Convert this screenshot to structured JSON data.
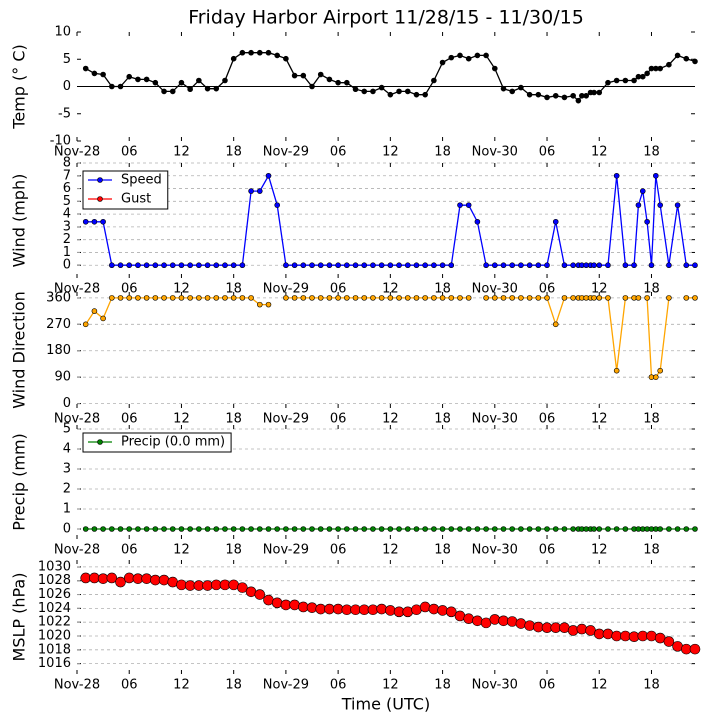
{
  "chart_data": [
    {
      "type": "line",
      "title": "Friday Harbor Airport 11/28/15 - 11/30/15",
      "ylabel": "Temp (° C)",
      "x": [
        1,
        2,
        3,
        4,
        5,
        6,
        7,
        8,
        9,
        10,
        11,
        12,
        13,
        14,
        15,
        16,
        17,
        18,
        19,
        20,
        21,
        22,
        23,
        24,
        25,
        26,
        27,
        28,
        29,
        30,
        31,
        32,
        33,
        34,
        35,
        36,
        37,
        38,
        39,
        40,
        41,
        42,
        43,
        44,
        45,
        46,
        47,
        48,
        49,
        50,
        51,
        52,
        53,
        54,
        55,
        56,
        57,
        57.6,
        58,
        58.5,
        59,
        59.4,
        60,
        61,
        62,
        63,
        64,
        64.5,
        65,
        65.5,
        66,
        66.5,
        67,
        68,
        69,
        70,
        71
      ],
      "series": [
        {
          "name": "Temp",
          "color": "#000000",
          "values": [
            3.3,
            2.4,
            2.2,
            0,
            0,
            1.8,
            1.3,
            1.3,
            0.7,
            -0.9,
            -0.9,
            0.7,
            -0.5,
            1.1,
            -0.4,
            -0.4,
            1.1,
            5.1,
            6.2,
            6.2,
            6.2,
            6.2,
            5.7,
            5.1,
            2.0,
            2.0,
            0,
            2.2,
            1.3,
            0.7,
            0.7,
            -0.5,
            -0.9,
            -0.9,
            -0.2,
            -1.5,
            -0.9,
            -0.9,
            -1.5,
            -1.5,
            1.1,
            4.4,
            5.3,
            5.7,
            5.1,
            5.7,
            5.7,
            3.3,
            -0.4,
            -0.9,
            -0.2,
            -1.5,
            -1.5,
            -2.0,
            -1.7,
            -2.0,
            -1.7,
            -2.6,
            -1.7,
            -1.7,
            -1.1,
            -1.1,
            -1.1,
            0.7,
            1.1,
            1.1,
            1.1,
            1.8,
            1.8,
            2.4,
            3.3,
            3.3,
            3.3,
            4.0,
            5.7,
            5.1,
            4.6
          ]
        }
      ],
      "xlim": [
        0,
        71
      ],
      "xticks": [
        {
          "value": 0,
          "label": "Nov-28"
        },
        {
          "value": 6,
          "label": "06"
        },
        12,
        18,
        {
          "value": 24,
          "label": "Nov-29"
        },
        {
          "value": 30,
          "label": "06"
        },
        {
          "value": 36,
          "label": "12"
        },
        {
          "value": 42,
          "label": "18"
        },
        {
          "value": 48,
          "label": "Nov-30"
        },
        {
          "value": 54,
          "label": "06"
        },
        {
          "value": 60,
          "label": "12"
        },
        {
          "value": 66,
          "label": "18"
        }
      ],
      "ylim": [
        -10,
        10
      ],
      "yticks": [
        -10,
        -5,
        0,
        5,
        10
      ],
      "hline": 0,
      "grid": false,
      "marker_size": 2.5
    },
    {
      "type": "line",
      "ylabel": "Wind (mph)",
      "x": [
        1,
        2,
        3,
        4,
        5,
        6,
        7,
        8,
        9,
        10,
        11,
        12,
        13,
        14,
        15,
        16,
        17,
        18,
        19,
        20,
        21,
        22,
        23,
        24,
        25,
        26,
        27,
        28,
        29,
        30,
        31,
        32,
        33,
        34,
        35,
        36,
        37,
        38,
        39,
        40,
        41,
        42,
        43,
        44,
        45,
        46,
        47,
        48,
        49,
        50,
        51,
        52,
        53,
        54,
        55,
        56,
        57,
        57.6,
        58,
        58.5,
        59,
        59.4,
        60,
        61,
        62,
        63,
        64,
        64.5,
        65,
        65.5,
        66,
        66.5,
        67,
        68,
        69,
        70,
        71
      ],
      "series": [
        {
          "name": "Speed",
          "color": "#0000ff",
          "values": [
            3.4,
            3.4,
            3.4,
            0,
            0,
            0,
            0,
            0,
            0,
            0,
            0,
            0,
            0,
            0,
            0,
            0,
            0,
            0,
            0,
            5.8,
            5.8,
            7,
            4.7,
            0,
            0,
            0,
            0,
            0,
            0,
            0,
            0,
            0,
            0,
            0,
            0,
            0,
            0,
            0,
            0,
            0,
            0,
            0,
            0,
            4.7,
            4.7,
            3.4,
            0,
            0,
            0,
            0,
            0,
            0,
            0,
            0,
            3.4,
            0,
            0,
            0,
            0,
            0,
            0,
            0,
            0,
            0,
            7,
            0,
            0,
            4.7,
            5.8,
            3.4,
            0,
            7,
            4.7,
            0,
            4.7,
            0,
            0
          ]
        },
        {
          "name": "Gust",
          "color": "#ff0000",
          "values": [
            null,
            null,
            null,
            null,
            null,
            null,
            null,
            null,
            null,
            null,
            null,
            null,
            null,
            null,
            null,
            null,
            null,
            null,
            null,
            null,
            null,
            null,
            null,
            null,
            null,
            null,
            null,
            null,
            null,
            null,
            null,
            null,
            null,
            null,
            null,
            null,
            null,
            null,
            null,
            null,
            null,
            null,
            null,
            null,
            null,
            null,
            null,
            null,
            null,
            null,
            null,
            null,
            null,
            null,
            null,
            null,
            null,
            null,
            null,
            null,
            null,
            null,
            null,
            null,
            null,
            null,
            null,
            null,
            null,
            null,
            null,
            null,
            null,
            null,
            null,
            null,
            null
          ]
        }
      ],
      "xlim": [
        0,
        71
      ],
      "xticks": [
        {
          "value": 0,
          "label": "Nov-28"
        },
        {
          "value": 6,
          "label": "06"
        },
        12,
        18,
        {
          "value": 24,
          "label": "Nov-29"
        },
        {
          "value": 30,
          "label": "06"
        },
        {
          "value": 36,
          "label": "12"
        },
        {
          "value": 42,
          "label": "18"
        },
        {
          "value": 48,
          "label": "Nov-30"
        },
        {
          "value": 54,
          "label": "06"
        },
        {
          "value": 60,
          "label": "12"
        },
        {
          "value": 66,
          "label": "18"
        }
      ],
      "ylim": [
        -1,
        8
      ],
      "yticks": [
        0,
        1,
        2,
        3,
        4,
        5,
        6,
        7,
        8
      ],
      "grid": true,
      "legend": "upper left",
      "marker_size": 2.5
    },
    {
      "type": "line",
      "ylabel": "Wind Direction",
      "x": [
        1,
        2,
        3,
        4,
        5,
        6,
        7,
        8,
        9,
        10,
        11,
        12,
        13,
        14,
        15,
        16,
        17,
        18,
        19,
        20,
        21,
        22,
        23,
        24,
        25,
        26,
        27,
        28,
        29,
        30,
        31,
        32,
        33,
        34,
        35,
        36,
        37,
        38,
        39,
        40,
        41,
        42,
        43,
        44,
        45,
        46,
        47,
        48,
        49,
        50,
        51,
        52,
        53,
        54,
        55,
        56,
        57,
        57.6,
        58,
        58.5,
        59,
        59.4,
        60,
        61,
        62,
        63,
        64,
        64.5,
        65,
        65.5,
        66,
        66.5,
        67,
        68,
        69,
        70,
        71
      ],
      "series": [
        {
          "name": "Direction",
          "color": "#ffa500",
          "values": [
            270,
            315,
            290,
            360,
            360,
            360,
            360,
            360,
            360,
            360,
            360,
            360,
            360,
            360,
            360,
            360,
            360,
            360,
            360,
            360,
            337,
            337,
            null,
            360,
            360,
            360,
            360,
            360,
            360,
            360,
            360,
            360,
            360,
            360,
            360,
            360,
            360,
            360,
            360,
            360,
            360,
            360,
            360,
            360,
            360,
            null,
            360,
            360,
            360,
            360,
            360,
            360,
            360,
            360,
            270,
            360,
            360,
            360,
            360,
            360,
            360,
            360,
            360,
            360,
            112,
            360,
            360,
            360,
            null,
            360,
            90,
            90,
            112,
            360,
            null,
            360,
            360
          ]
        }
      ],
      "xlim": [
        0,
        71
      ],
      "xticks": [
        {
          "value": 0,
          "label": "Nov-28"
        },
        {
          "value": 6,
          "label": "06"
        },
        12,
        18,
        {
          "value": 24,
          "label": "Nov-29"
        },
        {
          "value": 30,
          "label": "06"
        },
        {
          "value": 36,
          "label": "12"
        },
        {
          "value": 42,
          "label": "18"
        },
        {
          "value": 48,
          "label": "Nov-30"
        },
        {
          "value": 54,
          "label": "06"
        },
        {
          "value": 60,
          "label": "12"
        },
        {
          "value": 66,
          "label": "18"
        }
      ],
      "ylim": [
        -15,
        380
      ],
      "yticks": [
        0,
        90,
        180,
        270,
        360
      ],
      "grid": true,
      "marker_size": 2.5
    },
    {
      "type": "line",
      "ylabel": "Precip (mm)",
      "x": [
        1,
        2,
        3,
        4,
        5,
        6,
        7,
        8,
        9,
        10,
        11,
        12,
        13,
        14,
        15,
        16,
        17,
        18,
        19,
        20,
        21,
        22,
        23,
        24,
        25,
        26,
        27,
        28,
        29,
        30,
        31,
        32,
        33,
        34,
        35,
        36,
        37,
        38,
        39,
        40,
        41,
        42,
        43,
        44,
        45,
        46,
        47,
        48,
        49,
        50,
        51,
        52,
        53,
        54,
        55,
        56,
        57,
        57.6,
        58,
        58.5,
        59,
        59.4,
        60,
        61,
        62,
        63,
        64,
        64.5,
        65,
        65.5,
        66,
        66.5,
        67,
        68,
        69,
        70,
        71
      ],
      "series": [
        {
          "name": "Precip (0.0 mm)",
          "color": "#008000",
          "values": [
            0,
            0,
            0,
            0,
            0,
            0,
            0,
            0,
            0,
            0,
            0,
            0,
            0,
            0,
            0,
            0,
            0,
            0,
            0,
            0,
            0,
            0,
            0,
            0,
            0,
            0,
            0,
            0,
            0,
            0,
            0,
            0,
            0,
            0,
            0,
            0,
            0,
            0,
            0,
            0,
            0,
            0,
            0,
            0,
            0,
            0,
            0,
            0,
            0,
            0,
            0,
            0,
            0,
            0,
            0,
            0,
            0,
            0,
            0,
            0,
            0,
            0,
            0,
            0,
            0,
            0,
            0,
            0,
            0,
            0,
            0,
            0,
            0,
            0,
            0,
            0,
            0
          ]
        }
      ],
      "xlim": [
        0,
        71
      ],
      "xticks": [
        {
          "value": 0,
          "label": "Nov-28"
        },
        {
          "value": 6,
          "label": "06"
        },
        12,
        18,
        {
          "value": 24,
          "label": "Nov-29"
        },
        {
          "value": 30,
          "label": "06"
        },
        {
          "value": 36,
          "label": "12"
        },
        {
          "value": 42,
          "label": "18"
        },
        {
          "value": 48,
          "label": "Nov-30"
        },
        {
          "value": 54,
          "label": "06"
        },
        {
          "value": 60,
          "label": "12"
        },
        {
          "value": 66,
          "label": "18"
        }
      ],
      "ylim": [
        -0.5,
        5.2
      ],
      "yticks": [
        0,
        1,
        2,
        3,
        4,
        5
      ],
      "grid": true,
      "legend": "upper left",
      "marker_size": 2.5
    },
    {
      "type": "scatter",
      "ylabel": "MSLP (hPa)",
      "xlabel": "Time (UTC)",
      "x": [
        1,
        2,
        3,
        4,
        5,
        6,
        7,
        8,
        9,
        10,
        11,
        12,
        13,
        14,
        15,
        16,
        17,
        18,
        19,
        20,
        21,
        22,
        23,
        24,
        25,
        26,
        27,
        28,
        29,
        30,
        31,
        32,
        33,
        34,
        35,
        36,
        37,
        38,
        39,
        40,
        41,
        42,
        43,
        44,
        45,
        46,
        47,
        48,
        49,
        50,
        51,
        52,
        53,
        54,
        55,
        56,
        57,
        58,
        59,
        60,
        61,
        62,
        63,
        64,
        65,
        66,
        67,
        68,
        69,
        70,
        71
      ],
      "series": [
        {
          "name": "MSLP",
          "color": "#ff0000",
          "values": [
            1028.4,
            1028.4,
            1028.3,
            1028.4,
            1027.8,
            1028.4,
            1028.3,
            1028.3,
            1028.1,
            1028.1,
            1027.8,
            1027.4,
            1027.3,
            1027.3,
            1027.3,
            1027.4,
            1027.4,
            1027.4,
            1027.0,
            1026.4,
            1026.0,
            1025.2,
            1024.8,
            1024.5,
            1024.5,
            1024.2,
            1024.1,
            1023.9,
            1023.9,
            1023.9,
            1023.8,
            1023.8,
            1023.8,
            1023.8,
            1023.9,
            1023.7,
            1023.5,
            1023.5,
            1023.8,
            1024.2,
            1023.9,
            1023.7,
            1023.5,
            1022.9,
            1022.5,
            1022.2,
            1021.9,
            1022.4,
            1022.2,
            1022.1,
            1021.8,
            1021.5,
            1021.3,
            1021.2,
            1021.2,
            1021.2,
            1020.8,
            1021.0,
            1020.8,
            1020.3,
            1020.3,
            1020.0,
            1020.0,
            1019.9,
            1020.0,
            1020.0,
            1019.7,
            1019.2,
            1018.5,
            1018.1,
            1018.1
          ]
        }
      ],
      "xlim": [
        0,
        71
      ],
      "xticks": [
        {
          "value": 0,
          "label": "Nov-28"
        },
        {
          "value": 6,
          "label": "06"
        },
        12,
        18,
        {
          "value": 24,
          "label": "Nov-29"
        },
        {
          "value": 30,
          "label": "06"
        },
        {
          "value": 36,
          "label": "12"
        },
        {
          "value": 42,
          "label": "18"
        },
        {
          "value": 48,
          "label": "Nov-30"
        },
        {
          "value": 54,
          "label": "06"
        },
        {
          "value": 60,
          "label": "12"
        },
        {
          "value": 66,
          "label": "18"
        }
      ],
      "ylim": [
        1014.5,
        1031
      ],
      "yticks": [
        1016,
        1018,
        1020,
        1022,
        1024,
        1026,
        1028,
        1030
      ],
      "grid": true,
      "marker_size": 5
    }
  ]
}
